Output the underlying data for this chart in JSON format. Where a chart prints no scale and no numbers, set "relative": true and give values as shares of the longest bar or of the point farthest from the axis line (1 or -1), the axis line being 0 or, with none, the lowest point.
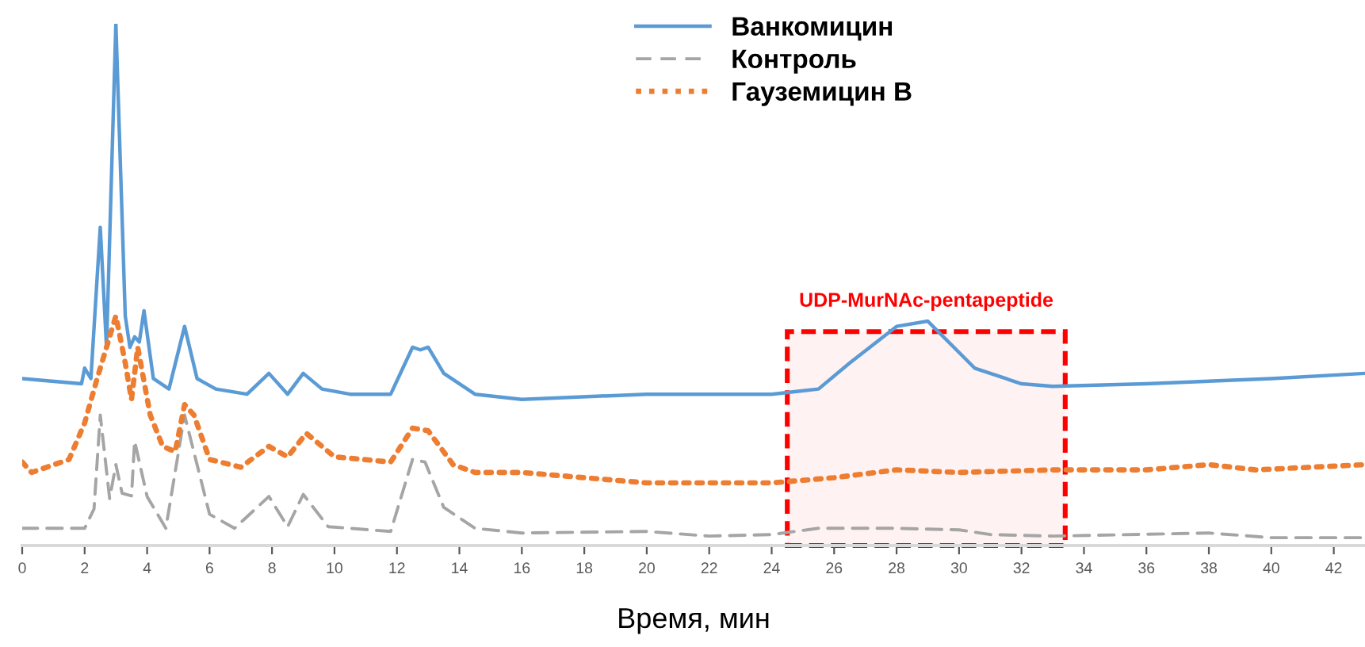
{
  "chart_data": {
    "type": "line",
    "relative": true,
    "xlabel": "Время, мин",
    "xlim": [
      0,
      43
    ],
    "xticks": [
      0,
      2,
      4,
      6,
      8,
      10,
      12,
      14,
      16,
      18,
      20,
      22,
      24,
      26,
      28,
      30,
      32,
      34,
      36,
      38,
      40,
      42
    ],
    "legend": "top",
    "grid": false,
    "tick_labels": "x",
    "series": [
      {
        "name": "Ванкомицин",
        "color": "#5b9bd5",
        "line_style": "solid",
        "x": [
          0,
          1.9,
          2.0,
          2.2,
          2.5,
          2.7,
          3.0,
          3.3,
          3.45,
          3.6,
          3.75,
          3.9,
          4.2,
          4.7,
          5.2,
          5.6,
          6.2,
          7.2,
          7.9,
          8.5,
          9.0,
          9.6,
          10.5,
          11.8,
          12.5,
          12.75,
          13.0,
          13.5,
          14.5,
          16,
          20,
          24,
          25.5,
          26.5,
          28,
          29,
          30.5,
          32,
          33,
          36,
          40,
          43
        ],
        "values": [
          0.32,
          0.31,
          0.34,
          0.32,
          0.61,
          0.38,
          1.0,
          0.44,
          0.38,
          0.4,
          0.39,
          0.45,
          0.32,
          0.3,
          0.42,
          0.32,
          0.3,
          0.29,
          0.33,
          0.29,
          0.33,
          0.3,
          0.29,
          0.29,
          0.38,
          0.375,
          0.38,
          0.33,
          0.29,
          0.28,
          0.29,
          0.29,
          0.3,
          0.35,
          0.42,
          0.43,
          0.34,
          0.31,
          0.305,
          0.31,
          0.32,
          0.33
        ]
      },
      {
        "name": "Контроль",
        "color": "#a5a5a5",
        "line_style": "dashed",
        "x": [
          0,
          2.0,
          2.3,
          2.5,
          2.8,
          3.0,
          3.2,
          3.5,
          3.6,
          4.0,
          4.6,
          5.2,
          6.0,
          6.8,
          7.9,
          8.5,
          9.0,
          9.8,
          11.8,
          12.5,
          12.9,
          13.5,
          14.5,
          16,
          20,
          22,
          24,
          25.5,
          28,
          30,
          31,
          33,
          38,
          40,
          43
        ],
        "values": [
          0.033,
          0.033,
          0.07,
          0.25,
          0.09,
          0.155,
          0.1,
          0.095,
          0.2,
          0.094,
          0.033,
          0.25,
          0.06,
          0.033,
          0.094,
          0.036,
          0.098,
          0.036,
          0.027,
          0.165,
          0.16,
          0.073,
          0.033,
          0.024,
          0.027,
          0.018,
          0.021,
          0.033,
          0.033,
          0.03,
          0.021,
          0.018,
          0.024,
          0.015,
          0.015
        ]
      },
      {
        "name": "Гауземицин B",
        "color": "#ed7d31",
        "line_style": "dotted",
        "x": [
          0,
          0.3,
          1.5,
          2.0,
          2.4,
          3.0,
          3.3,
          3.5,
          3.7,
          4.1,
          4.5,
          4.9,
          5.2,
          5.5,
          6.0,
          7.0,
          7.9,
          8.5,
          9.1,
          10,
          11.8,
          12.5,
          13,
          13.8,
          14.5,
          16,
          20,
          24,
          26,
          28,
          30,
          33,
          36,
          38,
          39.5,
          43
        ],
        "values": [
          0.16,
          0.14,
          0.165,
          0.235,
          0.32,
          0.44,
          0.35,
          0.28,
          0.38,
          0.25,
          0.19,
          0.18,
          0.27,
          0.25,
          0.165,
          0.15,
          0.19,
          0.17,
          0.215,
          0.17,
          0.16,
          0.225,
          0.22,
          0.155,
          0.14,
          0.14,
          0.12,
          0.12,
          0.13,
          0.145,
          0.14,
          0.145,
          0.145,
          0.155,
          0.145,
          0.155
        ]
      }
    ],
    "bands": [
      {
        "axis": "x",
        "from": 24.5,
        "to": 33.4,
        "label": "UDP-MurNAc-pentapeptide",
        "color": "#ff0000"
      }
    ]
  }
}
